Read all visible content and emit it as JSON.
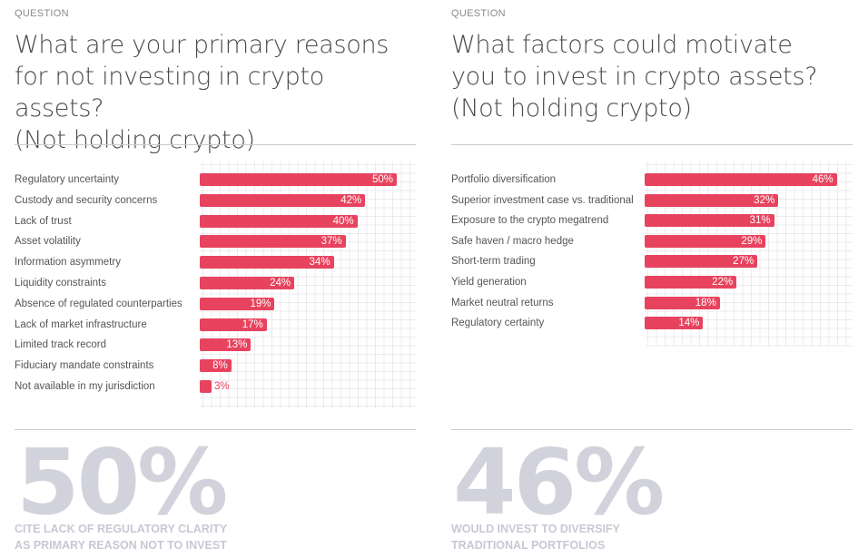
{
  "colors": {
    "bar": "#e8435e",
    "stat": "#d2d2dc"
  },
  "chart_data": [
    {
      "type": "bar",
      "orientation": "horizontal",
      "section_label": "QUESTION",
      "title_lines": [
        "What are your primary reasons",
        "for not investing in crypto assets?",
        "(Not holding crypto)"
      ],
      "categories": [
        "Regulatory uncertainty",
        "Custody and security concerns",
        "Lack of trust",
        "Asset volatility",
        "Information asymmetry",
        "Liquidity constraints",
        "Absence of regulated counterparties",
        "Lack of market infrastructure",
        "Limited track record",
        "Fiduciary mandate constraints",
        "Not available in my jurisdiction"
      ],
      "values": [
        50,
        42,
        40,
        37,
        34,
        24,
        19,
        17,
        13,
        8,
        3
      ],
      "value_labels": [
        "50%",
        "42%",
        "40%",
        "37%",
        "34%",
        "24%",
        "19%",
        "17%",
        "13%",
        "8%",
        "3%"
      ],
      "unit": "%",
      "stat": {
        "value": "50%",
        "caption_lines": [
          "CITE LACK OF REGULATORY CLARITY",
          "AS PRIMARY REASON NOT TO INVEST"
        ]
      }
    },
    {
      "type": "bar",
      "orientation": "horizontal",
      "section_label": "QUESTION",
      "title_lines": [
        "What factors could motivate",
        "you to invest in crypto assets?",
        "(Not holding crypto)"
      ],
      "categories": [
        "Portfolio diversification",
        "Superior investment case vs. traditional",
        "Exposure to the crypto megatrend",
        "Safe haven / macro hedge",
        "Short-term trading",
        "Yield generation",
        "Market neutral returns",
        "Regulatory certainty"
      ],
      "values": [
        46,
        32,
        31,
        29,
        27,
        22,
        18,
        14
      ],
      "value_labels": [
        "46%",
        "32%",
        "31%",
        "29%",
        "27%",
        "22%",
        "18%",
        "14%"
      ],
      "unit": "%",
      "stat": {
        "value": "46%",
        "caption_lines": [
          "WOULD INVEST TO DIVERSIFY",
          "TRADITIONAL PORTFOLIOS"
        ]
      }
    }
  ]
}
